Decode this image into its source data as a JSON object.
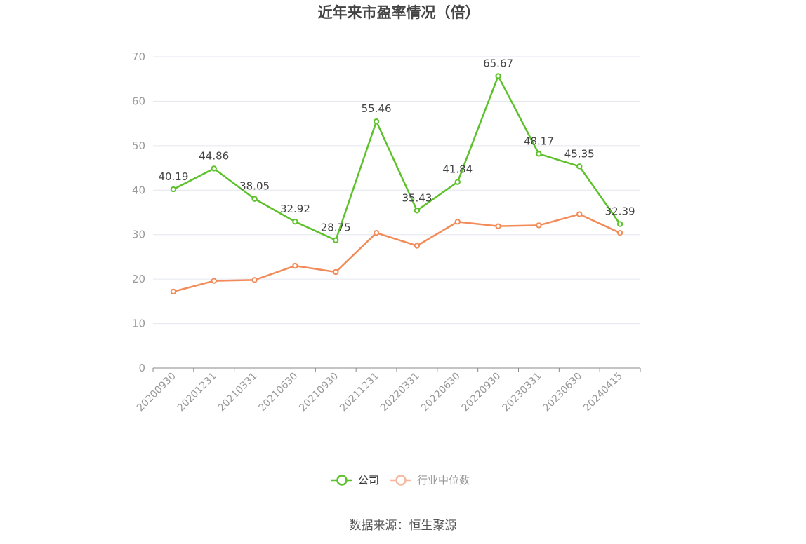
{
  "chart_data": {
    "type": "line",
    "title": "近年来市盈率情况（倍）",
    "categories": [
      "20200930",
      "20201231",
      "20210331",
      "20210630",
      "20210930",
      "20211231",
      "20220331",
      "20220630",
      "20220930",
      "20230331",
      "20230630",
      "20240415"
    ],
    "series": [
      {
        "name": "公司",
        "color": "#5cc12a",
        "values": [
          40.19,
          44.86,
          38.05,
          32.92,
          28.75,
          55.46,
          35.43,
          41.84,
          65.67,
          48.17,
          45.35,
          32.39
        ],
        "labels": [
          "40.19",
          "44.86",
          "38.05",
          "32.92",
          "28.75",
          "55.46",
          "35.43",
          "41.84",
          "65.67",
          "48.17",
          "45.35",
          "32.39"
        ]
      },
      {
        "name": "行业中位数",
        "color": "#f28b58",
        "values": [
          17.2,
          19.6,
          19.8,
          23.0,
          21.6,
          30.4,
          27.5,
          32.9,
          31.9,
          32.1,
          34.6,
          30.4
        ]
      }
    ],
    "yticks": [
      "0",
      "10",
      "20",
      "30",
      "40",
      "50",
      "60",
      "70"
    ],
    "ylim": [
      0,
      70
    ],
    "legend_position": "bottom",
    "grid": true
  },
  "source": "数据来源：恒生聚源"
}
